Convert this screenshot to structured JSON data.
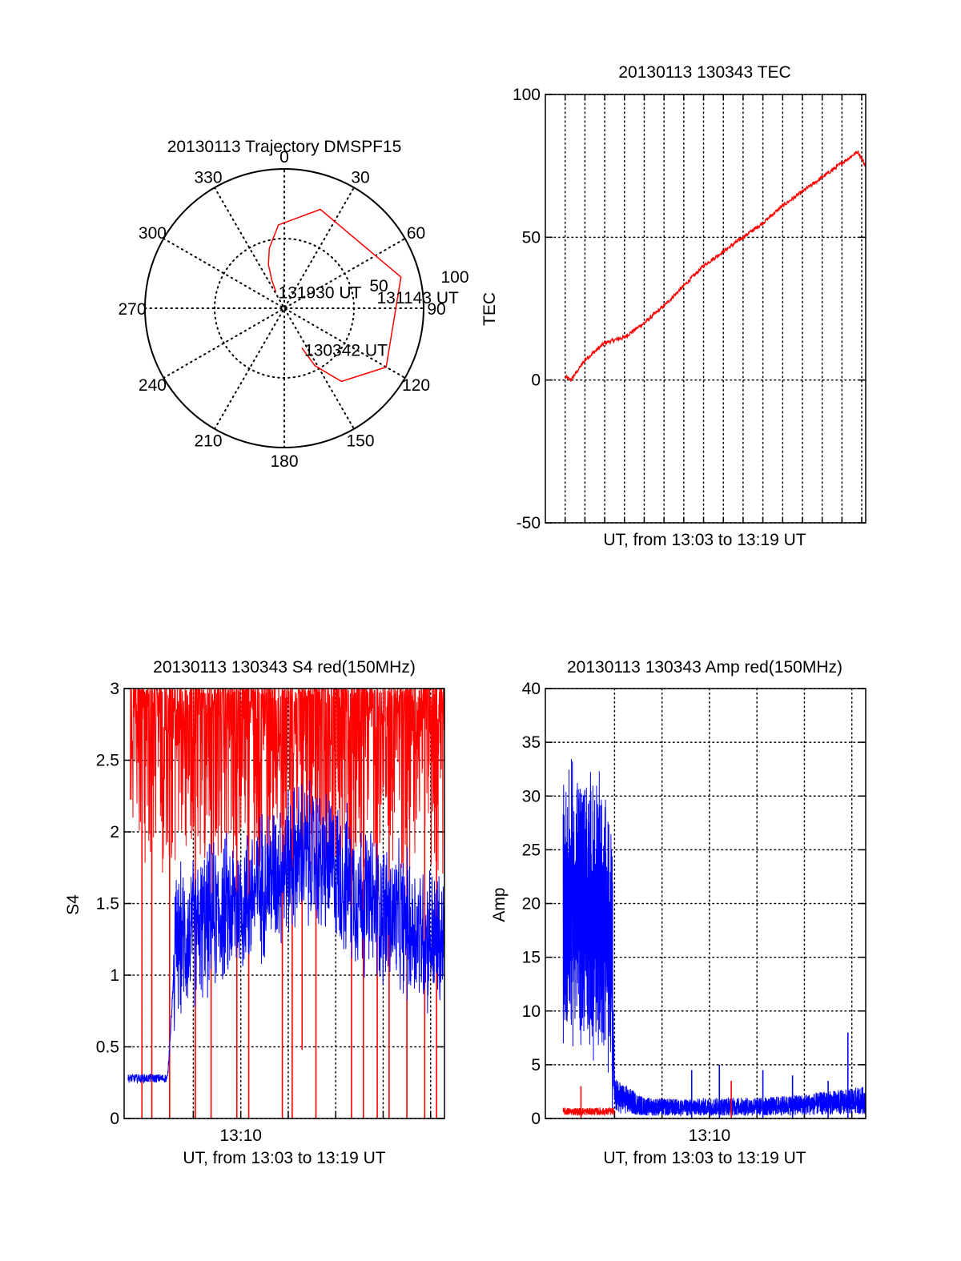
{
  "colors": {
    "trace_red": "#ff0000",
    "trace_blue": "#0000ff",
    "axis": "#000000",
    "grid": "#000000"
  },
  "chart_data": [
    {
      "id": "trajectory",
      "type": "polar",
      "title": "20130113 Trajectory DMSPF15",
      "azimuth_labels": [
        "0",
        "30",
        "60",
        "90",
        "120",
        "150",
        "180",
        "210",
        "240",
        "270",
        "300",
        "330"
      ],
      "radial_labels": [
        "50",
        "100"
      ],
      "grid": true,
      "series": [
        {
          "color": "red",
          "points": [
            {
              "az": 333,
              "el": 78
            },
            {
              "az": 336,
              "el": 70
            },
            {
              "az": 340,
              "el": 60
            },
            {
              "az": 346,
              "el": 50
            },
            {
              "az": 356,
              "el": 36
            },
            {
              "az": 20,
              "el": 22
            },
            {
              "az": 75,
              "el": 12
            },
            {
              "az": 120,
              "el": 14
            },
            {
              "az": 142,
              "el": 30
            },
            {
              "az": 152,
              "el": 48
            },
            {
              "az": 156,
              "el": 62
            }
          ]
        }
      ],
      "annotations": [
        {
          "text": "131930 UT",
          "az": 333,
          "el": 78
        },
        {
          "text": "131143 UT",
          "az": 80,
          "el": 12
        },
        {
          "text": "130342 UT",
          "az": 156,
          "el": 62
        }
      ]
    },
    {
      "id": "tec",
      "type": "line",
      "title": "20130113 130343 TEC",
      "xlabel": "UT, from 13:03 to 13:19 UT",
      "ylabel": "TEC",
      "ylim": [
        -50,
        100
      ],
      "yticks": [
        "-50",
        "0",
        "50",
        "100"
      ],
      "xlim_min": [
        3.0,
        19.2
      ],
      "grid_x_step_min": 1,
      "grid": true,
      "series": [
        {
          "color": "red",
          "x_min": [
            4.0,
            4.3,
            5.0,
            6.0,
            7.0,
            8.0,
            9.0,
            10.0,
            11.0,
            12.0,
            13.0,
            14.0,
            15.0,
            16.0,
            17.0,
            18.0,
            18.8,
            19.2
          ],
          "values": [
            1,
            0,
            7,
            13,
            15,
            20,
            26,
            33,
            40,
            45,
            50,
            55,
            61,
            66,
            71,
            76,
            80,
            75
          ]
        }
      ]
    },
    {
      "id": "s4",
      "type": "line",
      "title": "20130113 130343 S4 red(150MHz)",
      "xlabel": "UT, from 13:03 to 13:19 UT",
      "ylabel": "S4",
      "ylim": [
        0,
        3
      ],
      "yticks": [
        "0",
        "0.5",
        "1",
        "1.5",
        "2",
        "2.5",
        "3"
      ],
      "xticks": [
        "13:10"
      ],
      "xlim_min": [
        3.0,
        19.2
      ],
      "grid": true,
      "series": [
        {
          "color": "red",
          "note": "saturated near 3 with frequent dropouts to 0",
          "x_min": [
            3.2,
            5.6,
            8.0,
            10.5,
            13.0,
            15.5,
            19.2
          ],
          "values": [
            2.9,
            2.9,
            2.9,
            2.9,
            2.9,
            2.9,
            2.9
          ],
          "dropouts_min": [
            3.9,
            4.4,
            5.3,
            6.6,
            7.4,
            8.7,
            9.3,
            11.0,
            11.5,
            12.7,
            14.5,
            15.1,
            15.8,
            16.4,
            17.3,
            18.2,
            18.8
          ]
        },
        {
          "color": "blue",
          "x_min": [
            3.2,
            4.5,
            5.2,
            5.6,
            6.5,
            8.0,
            9.0,
            10.5,
            12.0,
            13.5,
            15.0,
            16.5,
            18.0,
            19.2
          ],
          "values": [
            0.28,
            0.28,
            0.28,
            1.2,
            1.3,
            1.45,
            1.5,
            1.7,
            1.85,
            1.75,
            1.55,
            1.4,
            1.3,
            1.2
          ]
        }
      ]
    },
    {
      "id": "amp",
      "type": "line",
      "title": "20130113 130343 Amp red(150MHz)",
      "xlabel": "UT, from 13:03 to 13:19 UT",
      "ylabel": "Amp",
      "ylim": [
        0,
        40
      ],
      "yticks": [
        "0",
        "5",
        "10",
        "15",
        "20",
        "25",
        "30",
        "35",
        "40"
      ],
      "xticks": [
        "13:10"
      ],
      "xlim_min": [
        3.0,
        19.2
      ],
      "grid": true,
      "series": [
        {
          "color": "blue",
          "x_min": [
            3.9,
            4.5,
            5.5,
            6.3,
            6.5,
            8.0,
            10.0,
            12.0,
            14.0,
            16.0,
            18.0,
            19.2
          ],
          "values": [
            20,
            20,
            19,
            17,
            2.5,
            1.3,
            1.2,
            1.3,
            1.3,
            1.5,
            1.8,
            2.0
          ],
          "spikes": [
            {
              "x": 10.4,
              "y": 4.5
            },
            {
              "x": 11.8,
              "y": 5
            },
            {
              "x": 14.0,
              "y": 4.5
            },
            {
              "x": 15.5,
              "y": 4
            },
            {
              "x": 17.3,
              "y": 3.5
            },
            {
              "x": 18.3,
              "y": 8
            }
          ]
        },
        {
          "color": "red",
          "x_min": [
            3.9,
            6.5
          ],
          "values": [
            0.6,
            0.6
          ],
          "spikes": [
            {
              "x": 4.8,
              "y": 3
            },
            {
              "x": 12.4,
              "y": 3.5
            }
          ]
        }
      ]
    }
  ]
}
